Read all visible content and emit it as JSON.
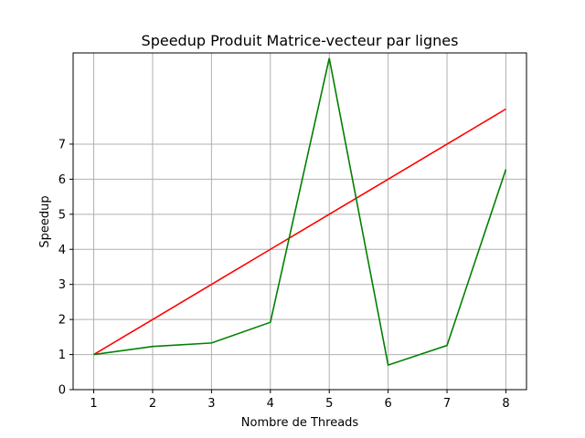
{
  "chart_data": {
    "type": "line",
    "title": "Speedup Produit Matrice-vecteur par lignes",
    "xlabel": "Nombre de Threads",
    "ylabel": "Speedup",
    "x": [
      1,
      2,
      3,
      4,
      5,
      6,
      7,
      8
    ],
    "xticks": [
      "1",
      "2",
      "3",
      "4",
      "5",
      "6",
      "7",
      "8"
    ],
    "yticks": [
      "0",
      "1",
      "2",
      "3",
      "4",
      "5",
      "6",
      "7"
    ],
    "xlim": [
      0.65,
      8.35
    ],
    "ylim": [
      0,
      9.6
    ],
    "grid": true,
    "series": [
      {
        "color": "#ff0000",
        "values": [
          1,
          2,
          3,
          4,
          5,
          6,
          7,
          8
        ]
      },
      {
        "color": "#008000",
        "values": [
          1.0,
          1.23,
          1.33,
          1.92,
          9.45,
          0.7,
          1.26,
          6.28
        ]
      }
    ]
  }
}
